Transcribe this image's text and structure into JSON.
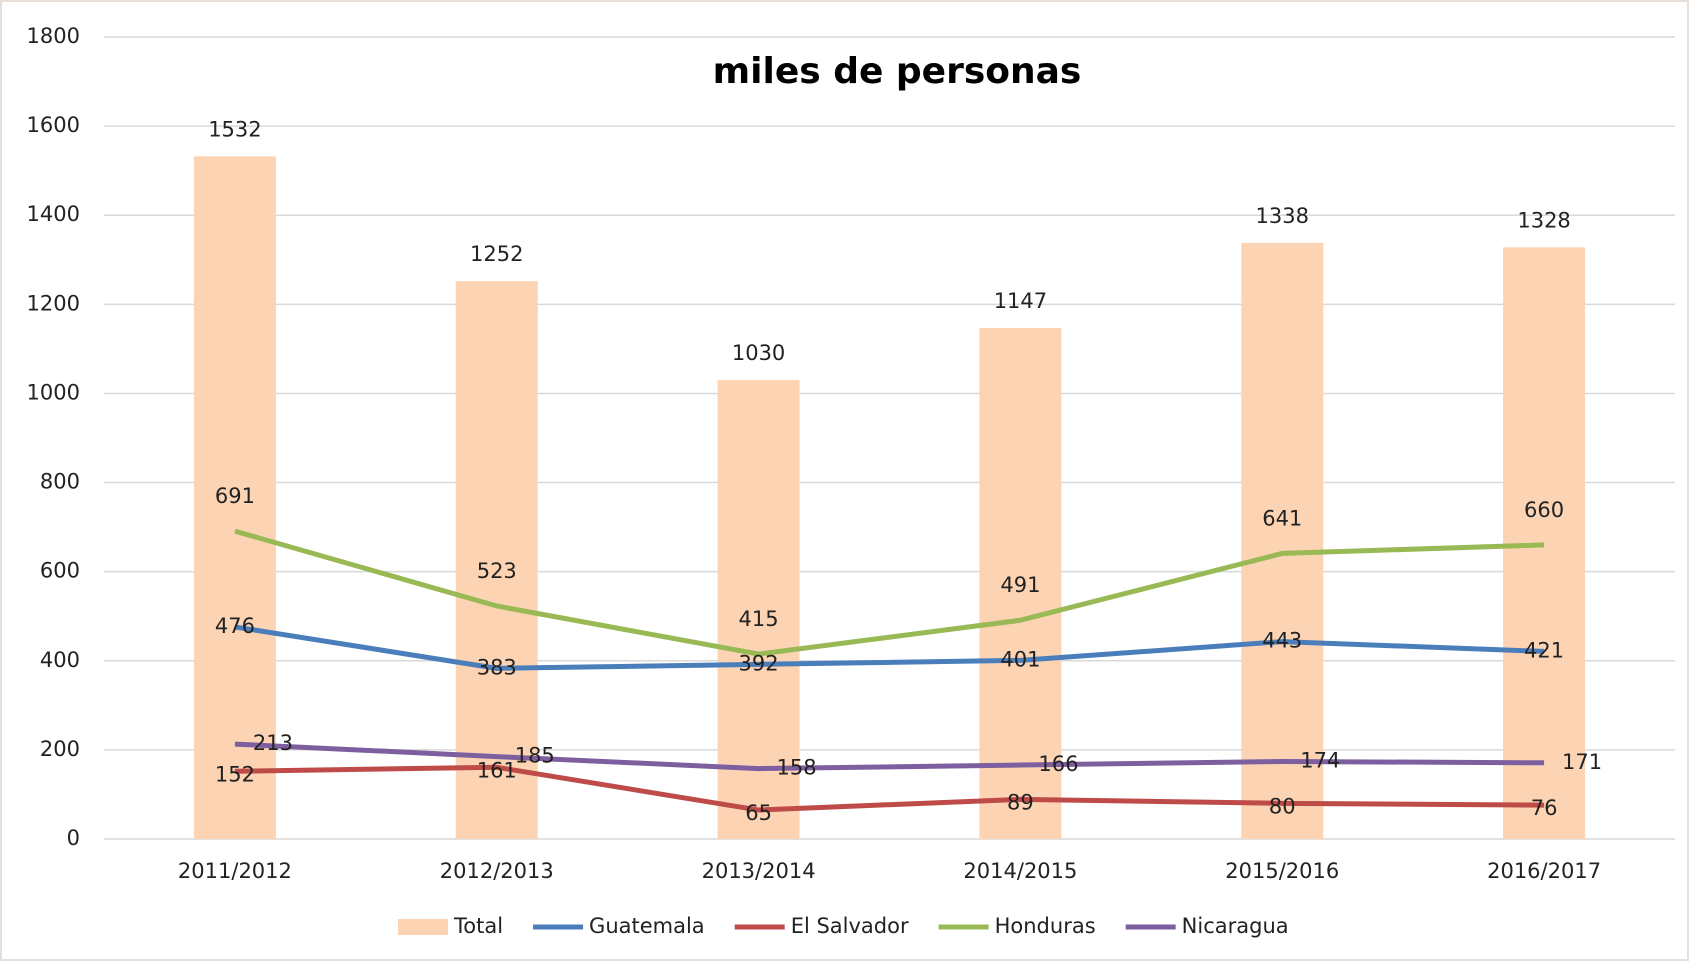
{
  "chart_data": {
    "type": "combo",
    "title": "miles de personas",
    "categories": [
      "2011/2012",
      "2012/2013",
      "2013/2014",
      "2014/2015",
      "2015/2016",
      "2016/2017"
    ],
    "series": [
      {
        "name": "Total",
        "type": "bar",
        "color": "#fcd3b3",
        "values": [
          1532,
          1252,
          1030,
          1147,
          1338,
          1328
        ]
      },
      {
        "name": "Guatemala",
        "type": "line",
        "color": "#4a7ebb",
        "values": [
          476,
          383,
          392,
          401,
          443,
          421
        ]
      },
      {
        "name": "El Salvador",
        "type": "line",
        "color": "#be4b48",
        "values": [
          152,
          161,
          65,
          89,
          80,
          76
        ]
      },
      {
        "name": "Honduras",
        "type": "line",
        "color": "#98b954",
        "values": [
          691,
          523,
          415,
          491,
          641,
          660
        ]
      },
      {
        "name": "Nicaragua",
        "type": "line",
        "color": "#7d5fa0",
        "values": [
          213,
          185,
          158,
          166,
          174,
          171
        ]
      }
    ],
    "ylim": [
      0,
      1800
    ],
    "yticks": [
      0,
      200,
      400,
      600,
      800,
      1000,
      1200,
      1400,
      1600,
      1800
    ],
    "grid": true,
    "legend": "bottom"
  }
}
